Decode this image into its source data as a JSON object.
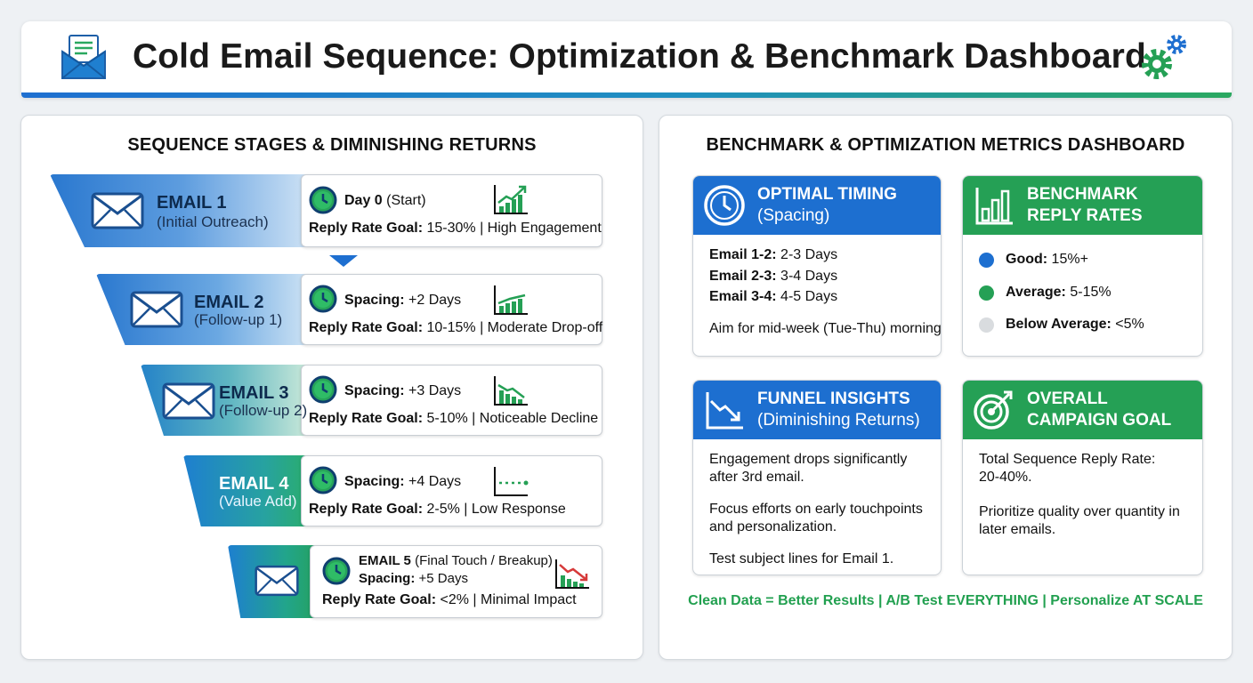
{
  "header": {
    "title": "Cold Email Sequence: Optimization & Benchmark Dashboard",
    "mail_icon": "envelope-open-icon",
    "settings_icon": "gears-icon",
    "colors": {
      "blue": "#1e6fd0",
      "green": "#2aa860"
    }
  },
  "left_panel": {
    "title": "SEQUENCE STAGES & DIMINISHING RETURNS",
    "stages": [
      {
        "name": "EMAIL 1",
        "sub": "(Initial Outreach)",
        "line1_label": "Day 0",
        "line1_value": " (Start)",
        "line2_label": "Reply Rate Goal:",
        "line2_value": " 15-30% | High Engagement",
        "trend_icon": "rising-chart-icon"
      },
      {
        "name": "EMAIL 2",
        "sub": "(Follow-up 1)",
        "line1_label": "Spacing:",
        "line1_value": " +2 Days",
        "line2_label": "Reply Rate Goal:",
        "line2_value": " 10-15% | Moderate Drop-off",
        "trend_icon": "flat-bar-chart-icon"
      },
      {
        "name": "EMAIL 3",
        "sub": "(Follow-up 2)",
        "line1_label": "Spacing:",
        "line1_value": " +3 Days",
        "line2_label": "Reply Rate Goal:",
        "line2_value": " 5-10% | Noticeable Decline",
        "trend_icon": "declining-chart-icon"
      },
      {
        "name": "EMAIL 4",
        "sub": "(Value Add)",
        "line1_label": "Spacing:",
        "line1_value": " +4 Days",
        "line2_label": "Reply Rate Goal:",
        "line2_value": " 2-5% | Low Response",
        "trend_icon": "flat-line-chart-icon"
      },
      {
        "name": "EMAIL 5",
        "sub": " (Final Touch / Breakup)",
        "line1_label": "Spacing:",
        "line1_value": " +5 Days",
        "line2_label": "Reply Rate Goal:",
        "line2_value": " <2% | Minimal Impact",
        "trend_icon": "falling-chart-icon"
      }
    ]
  },
  "right_panel": {
    "title": "BENCHMARK & OPTIMIZATION METRICS DASHBOARD",
    "timing": {
      "title": "OPTIMAL TIMING",
      "subtitle": "(Spacing)",
      "rows": [
        {
          "label": "Email 1-2:",
          "value": " 2-3 Days"
        },
        {
          "label": "Email 2-3:",
          "value": " 3-4 Days"
        },
        {
          "label": "Email 3-4:",
          "value": " 4-5 Days"
        }
      ],
      "note": "Aim for mid-week (Tue-Thu) mornings."
    },
    "benchmark": {
      "title1": "BENCHMARK",
      "title2": "REPLY RATES",
      "rows": [
        {
          "label": "Good:",
          "value": " 15%+",
          "color": "#1d6fd0"
        },
        {
          "label": "Average:",
          "value": " 5-15%",
          "color": "#25a055"
        },
        {
          "label": "Below Average:",
          "value": " <5%",
          "color": "#d9dcdf"
        }
      ]
    },
    "funnel": {
      "title": "FUNNEL INSIGHTS",
      "subtitle": "(Diminishing Returns)",
      "p1a": "Engagement drops significantly",
      "p1b": "after 3rd email.",
      "p2a": "Focus efforts on early touchpoints",
      "p2b": "and personalization.",
      "p3": "Test subject lines for Email 1."
    },
    "goal": {
      "title1": "OVERALL",
      "title2": "CAMPAIGN GOAL",
      "p1a": "Total Sequence Reply Rate:",
      "p1b": "20-40%.",
      "p2a": "Prioritize quality over quantity in",
      "p2b": "later emails."
    },
    "footer": "Clean Data = Better Results | A/B Test EVERYTHING | Personalize AT SCALE"
  }
}
